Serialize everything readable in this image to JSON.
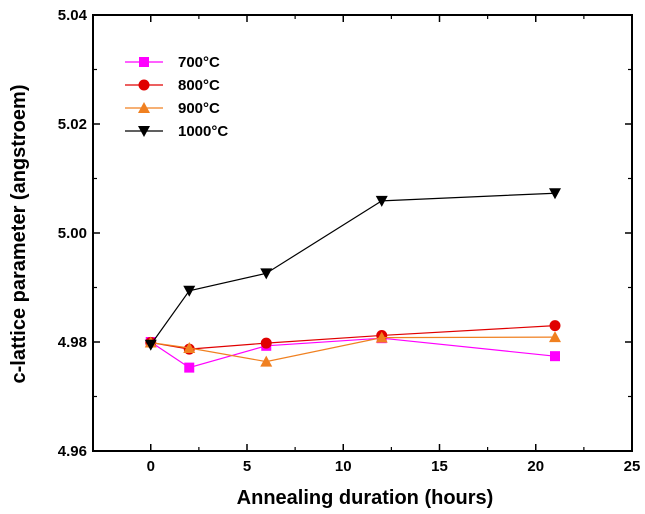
{
  "chart_data": {
    "type": "line",
    "title": "",
    "xlabel": "Annealing duration (hours)",
    "ylabel": "c-lattice parameter (angstroem)",
    "xlim": [
      -3,
      25
    ],
    "ylim": [
      4.96,
      5.04
    ],
    "xticks": [
      0,
      5,
      10,
      15,
      20,
      25
    ],
    "xtick_labels": [
      "0",
      "5",
      "10",
      "15",
      "20",
      "25"
    ],
    "yticks": [
      4.96,
      4.98,
      5.0,
      5.02,
      5.04
    ],
    "ytick_labels": [
      "4.96",
      "4.98",
      "5.00",
      "5.02",
      "5.04"
    ],
    "grid": false,
    "legend_position": "top-left",
    "x": [
      0,
      2,
      6,
      12,
      21
    ],
    "series": [
      {
        "name": "700°C",
        "values": [
          4.98,
          4.9753,
          4.9793,
          4.9807,
          4.9774
        ],
        "color": "#ff00ff",
        "marker": "square"
      },
      {
        "name": "800°C",
        "values": [
          4.9799,
          4.9787,
          4.9798,
          4.9812,
          4.983
        ],
        "color": "#e00000",
        "marker": "circle"
      },
      {
        "name": "900°C",
        "values": [
          4.9799,
          4.9789,
          4.9764,
          4.9808,
          4.9809
        ],
        "color": "#f08020",
        "marker": "triangle-up"
      },
      {
        "name": "1000°C",
        "values": [
          4.9795,
          4.9894,
          4.9926,
          5.0059,
          5.0073
        ],
        "color": "#000000",
        "marker": "triangle-down"
      }
    ]
  }
}
